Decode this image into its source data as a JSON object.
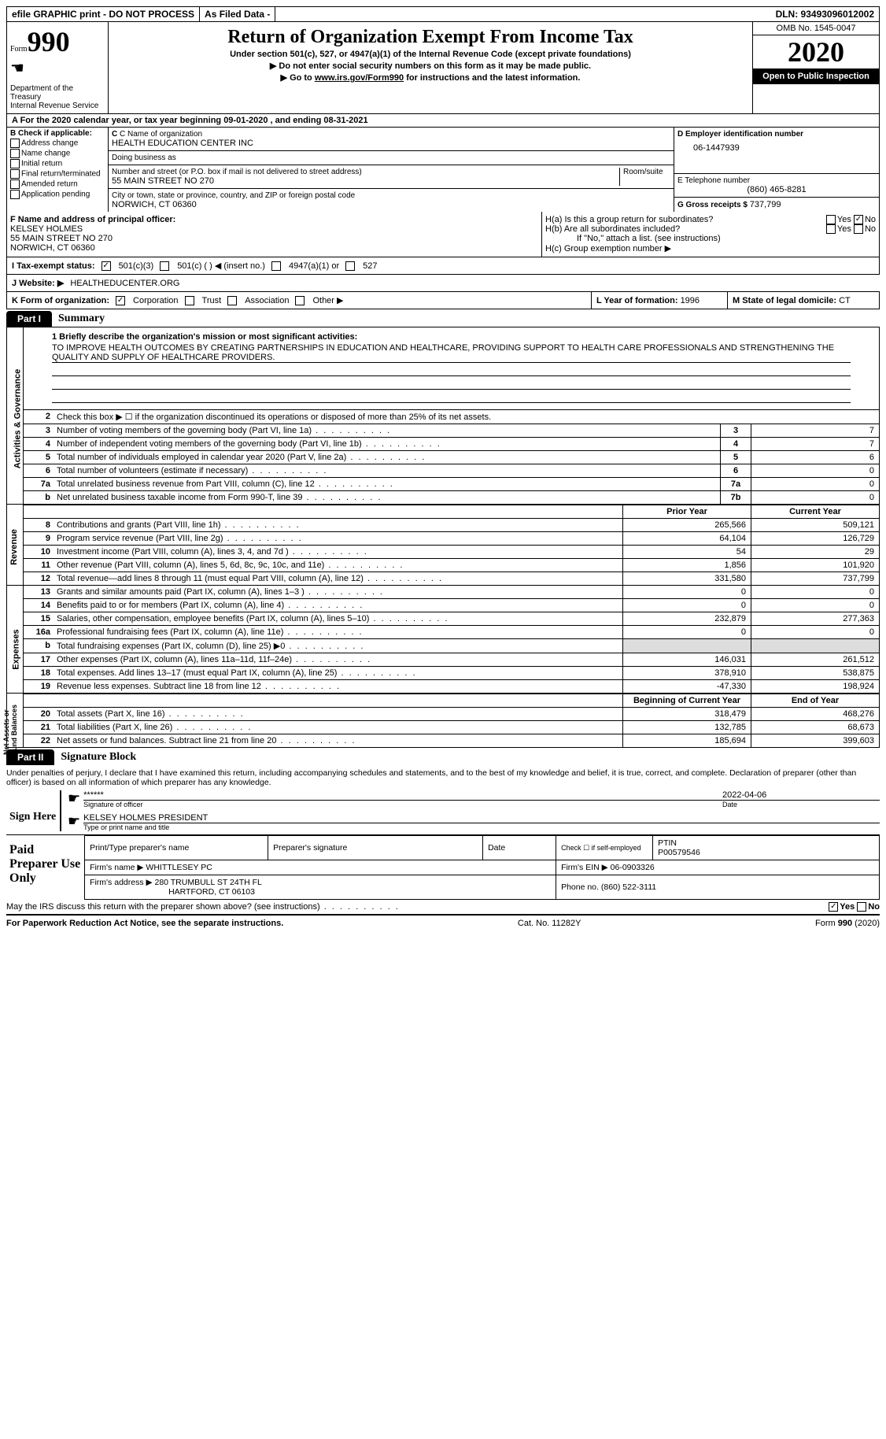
{
  "top": {
    "efile": "efile GRAPHIC print - DO NOT PROCESS",
    "asFiled": "As Filed Data -",
    "dln": "DLN: 93493096012002"
  },
  "header": {
    "formText": "Form",
    "formNum": "990",
    "dept": "Department of the Treasury\nInternal Revenue Service",
    "title": "Return of Organization Exempt From Income Tax",
    "sub1": "Under section 501(c), 527, or 4947(a)(1) of the Internal Revenue Code (except private foundations)",
    "sub2": "▶ Do not enter social security numbers on this form as it may be made public.",
    "sub3": "▶ Go to ",
    "sub3link": "www.irs.gov/Form990",
    "sub3end": " for instructions and the latest information.",
    "omb": "OMB No. 1545-0047",
    "year": "2020",
    "inspect": "Open to Public Inspection"
  },
  "rowA": "A  For the 2020 calendar year, or tax year beginning 09-01-2020  , and ending 08-31-2021",
  "B": {
    "label": "B Check if applicable:",
    "items": [
      "Address change",
      "Name change",
      "Initial return",
      "Final return/terminated",
      "Amended return",
      "Application pending"
    ]
  },
  "C": {
    "nameLbl": "C Name of organization",
    "name": "HEALTH EDUCATION CENTER INC",
    "dbaLbl": "Doing business as",
    "dba": "",
    "streetLbl": "Number and street (or P.O. box if mail is not delivered to street address)",
    "roomLbl": "Room/suite",
    "street": "55 MAIN STREET NO 270",
    "cityLbl": "City or town, state or province, country, and ZIP or foreign postal code",
    "city": "NORWICH, CT  06360"
  },
  "D": {
    "lbl": "D Employer identification number",
    "val": "06-1447939"
  },
  "E": {
    "lbl": "E Telephone number",
    "val": "(860) 465-8281"
  },
  "G": {
    "lbl": "G Gross receipts $ ",
    "val": "737,799"
  },
  "F": {
    "lbl": "F  Name and address of principal officer:",
    "line1": "KELSEY HOLMES",
    "line2": "55 MAIN STREET NO 270",
    "line3": "NORWICH, CT  06360"
  },
  "H": {
    "a": "H(a)  Is this a group return for subordinates?",
    "b": "H(b)  Are all subordinates included?",
    "bnote": "If \"No,\" attach a list. (see instructions)",
    "c": "H(c)  Group exemption number ▶",
    "yes": "Yes",
    "no": "No"
  },
  "I": {
    "lbl": "I  Tax-exempt status:",
    "o1": "501(c)(3)",
    "o2": "501(c) (  ) ◀ (insert no.)",
    "o3": "4947(a)(1) or",
    "o4": "527"
  },
  "J": {
    "lbl": "J  Website: ▶",
    "val": "HEALTHEDUCENTER.ORG"
  },
  "K": {
    "lbl": "K Form of organization:",
    "o1": "Corporation",
    "o2": "Trust",
    "o3": "Association",
    "o4": "Other ▶"
  },
  "L": {
    "lbl": "L Year of formation: ",
    "val": "1996"
  },
  "M": {
    "lbl": "M State of legal domicile: ",
    "val": "CT"
  },
  "part1": {
    "tab": "Part I",
    "title": "Summary"
  },
  "mission": {
    "q": "1  Briefly describe the organization's mission or most significant activities:",
    "text": "TO IMPROVE HEALTH OUTCOMES BY CREATING PARTNERSHIPS IN EDUCATION AND HEALTHCARE, PROVIDING SUPPORT TO HEALTH CARE PROFESSIONALS AND STRENGTHENING THE QUALITY AND SUPPLY OF HEALTHCARE PROVIDERS."
  },
  "line2": "Check this box ▶ ☐ if the organization discontinued its operations or disposed of more than 25% of its net assets.",
  "gov": [
    {
      "n": "3",
      "d": "Number of voting members of the governing body (Part VI, line 1a)",
      "k": "3",
      "v": "7"
    },
    {
      "n": "4",
      "d": "Number of independent voting members of the governing body (Part VI, line 1b)",
      "k": "4",
      "v": "7"
    },
    {
      "n": "5",
      "d": "Total number of individuals employed in calendar year 2020 (Part V, line 2a)",
      "k": "5",
      "v": "6"
    },
    {
      "n": "6",
      "d": "Total number of volunteers (estimate if necessary)",
      "k": "6",
      "v": "0"
    },
    {
      "n": "7a",
      "d": "Total unrelated business revenue from Part VIII, column (C), line 12",
      "k": "7a",
      "v": "0"
    },
    {
      "n": "b",
      "d": "Net unrelated business taxable income from Form 990-T, line 39",
      "k": "7b",
      "v": "0"
    }
  ],
  "colHeaders": {
    "prior": "Prior Year",
    "current": "Current Year"
  },
  "revenue": [
    {
      "n": "8",
      "d": "Contributions and grants (Part VIII, line 1h)",
      "p": "265,566",
      "c": "509,121"
    },
    {
      "n": "9",
      "d": "Program service revenue (Part VIII, line 2g)",
      "p": "64,104",
      "c": "126,729"
    },
    {
      "n": "10",
      "d": "Investment income (Part VIII, column (A), lines 3, 4, and 7d )",
      "p": "54",
      "c": "29"
    },
    {
      "n": "11",
      "d": "Other revenue (Part VIII, column (A), lines 5, 6d, 8c, 9c, 10c, and 11e)",
      "p": "1,856",
      "c": "101,920"
    },
    {
      "n": "12",
      "d": "Total revenue—add lines 8 through 11 (must equal Part VIII, column (A), line 12)",
      "p": "331,580",
      "c": "737,799"
    }
  ],
  "expenses": [
    {
      "n": "13",
      "d": "Grants and similar amounts paid (Part IX, column (A), lines 1–3 )",
      "p": "0",
      "c": "0"
    },
    {
      "n": "14",
      "d": "Benefits paid to or for members (Part IX, column (A), line 4)",
      "p": "0",
      "c": "0"
    },
    {
      "n": "15",
      "d": "Salaries, other compensation, employee benefits (Part IX, column (A), lines 5–10)",
      "p": "232,879",
      "c": "277,363"
    },
    {
      "n": "16a",
      "d": "Professional fundraising fees (Part IX, column (A), line 11e)",
      "p": "0",
      "c": "0"
    },
    {
      "n": "b",
      "d": "Total fundraising expenses (Part IX, column (D), line 25) ▶0",
      "p": "",
      "c": ""
    },
    {
      "n": "17",
      "d": "Other expenses (Part IX, column (A), lines 11a–11d, 11f–24e)",
      "p": "146,031",
      "c": "261,512"
    },
    {
      "n": "18",
      "d": "Total expenses. Add lines 13–17 (must equal Part IX, column (A), line 25)",
      "p": "378,910",
      "c": "538,875"
    },
    {
      "n": "19",
      "d": "Revenue less expenses. Subtract line 18 from line 12",
      "p": "-47,330",
      "c": "198,924"
    }
  ],
  "netHeaders": {
    "begin": "Beginning of Current Year",
    "end": "End of Year"
  },
  "net": [
    {
      "n": "20",
      "d": "Total assets (Part X, line 16)",
      "p": "318,479",
      "c": "468,276"
    },
    {
      "n": "21",
      "d": "Total liabilities (Part X, line 26)",
      "p": "132,785",
      "c": "68,673"
    },
    {
      "n": "22",
      "d": "Net assets or fund balances. Subtract line 21 from line 20",
      "p": "185,694",
      "c": "399,603"
    }
  ],
  "vtabs": {
    "gov": "Activities & Governance",
    "rev": "Revenue",
    "exp": "Expenses",
    "net": "Net Assets or\nFund Balances"
  },
  "part2": {
    "tab": "Part II",
    "title": "Signature Block"
  },
  "sigText": "Under penalties of perjury, I declare that I have examined this return, including accompanying schedules and statements, and to the best of my knowledge and belief, it is true, correct, and complete. Declaration of preparer (other than officer) is based on all information of which preparer has any knowledge.",
  "sign": {
    "here": "Sign Here",
    "stars": "******",
    "sigLbl": "Signature of officer",
    "date": "2022-04-06",
    "dateLbl": "Date",
    "name": "KELSEY HOLMES PRESIDENT",
    "nameLbl": "Type or print name and title"
  },
  "paid": {
    "lbl": "Paid Preparer Use Only",
    "h1": "Print/Type preparer's name",
    "h2": "Preparer's signature",
    "h3": "Date",
    "h4pre": "Check ☐ if self-employed",
    "h4": "PTIN",
    "ptin": "P00579546",
    "firmLbl": "Firm's name    ▶ ",
    "firm": "WHITTLESEY PC",
    "einLbl": "Firm's EIN ▶ ",
    "ein": "06-0903326",
    "addrLbl": "Firm's address ▶ ",
    "addr1": "280 TRUMBULL ST 24TH FL",
    "addr2": "HARTFORD, CT  06103",
    "phoneLbl": "Phone no. ",
    "phone": "(860) 522-3111"
  },
  "discuss": "May the IRS discuss this return with the preparer shown above? (see instructions)",
  "footer": {
    "left": "For Paperwork Reduction Act Notice, see the separate instructions.",
    "mid": "Cat. No. 11282Y",
    "right": "Form 990 (2020)"
  }
}
